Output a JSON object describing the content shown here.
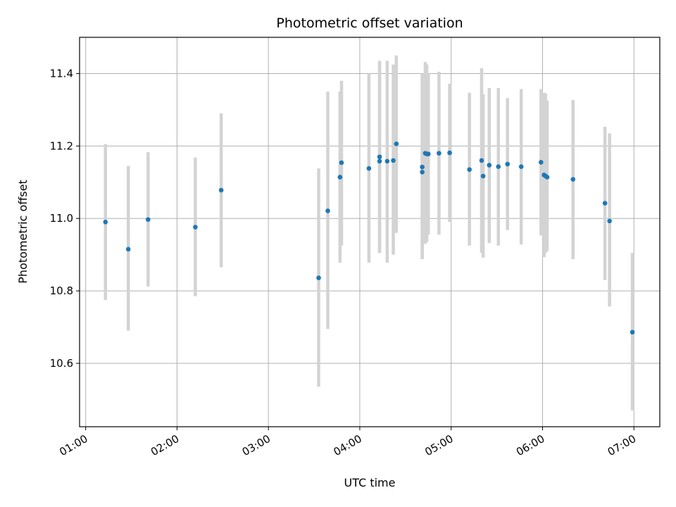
{
  "chart_data": {
    "type": "scatter",
    "title": "Photometric offset variation",
    "xlabel": "UTC time",
    "ylabel": "Photometric offset",
    "x_type": "time",
    "xlim": [
      "00:56",
      "07:17"
    ],
    "ylim": [
      10.425,
      11.5
    ],
    "grid": true,
    "x_ticks": [
      "01:00",
      "02:00",
      "03:00",
      "04:00",
      "05:00",
      "06:00",
      "07:00"
    ],
    "y_ticks": [
      10.6,
      10.8,
      11.0,
      11.2,
      11.4
    ],
    "y_tick_labels": [
      "10.6",
      "10.8",
      "11.0",
      "11.2",
      "11.4"
    ],
    "series": [
      {
        "points": [
          {
            "x": "01:13",
            "y": 10.99,
            "ylow": 10.775,
            "yhigh": 11.205
          },
          {
            "x": "01:28",
            "y": 10.915,
            "ylow": 10.69,
            "yhigh": 11.145
          },
          {
            "x": "01:41",
            "y": 10.997,
            "ylow": 10.812,
            "yhigh": 11.183
          },
          {
            "x": "02:12",
            "y": 10.976,
            "ylow": 10.785,
            "yhigh": 11.168
          },
          {
            "x": "02:29",
            "y": 11.078,
            "ylow": 10.865,
            "yhigh": 11.29
          },
          {
            "x": "03:33",
            "y": 10.836,
            "ylow": 10.535,
            "yhigh": 11.138
          },
          {
            "x": "03:39",
            "y": 11.021,
            "ylow": 10.695,
            "yhigh": 11.35
          },
          {
            "x": "03:47",
            "y": 11.114,
            "ylow": 10.878,
            "yhigh": 11.35
          },
          {
            "x": "03:48",
            "y": 11.154,
            "ylow": 10.925,
            "yhigh": 11.38
          },
          {
            "x": "04:06",
            "y": 11.138,
            "ylow": 10.878,
            "yhigh": 11.4
          },
          {
            "x": "04:13",
            "y": 11.17,
            "ylow": 10.905,
            "yhigh": 11.435
          },
          {
            "x": "04:13",
            "y": 11.158,
            "ylow": 10.905,
            "yhigh": 11.43
          },
          {
            "x": "04:18",
            "y": 11.158,
            "ylow": 10.878,
            "yhigh": 11.435
          },
          {
            "x": "04:22",
            "y": 11.16,
            "ylow": 10.9,
            "yhigh": 11.425
          },
          {
            "x": "04:24",
            "y": 11.206,
            "ylow": 10.96,
            "yhigh": 11.45
          },
          {
            "x": "04:41",
            "y": 11.142,
            "ylow": 10.888,
            "yhigh": 11.4
          },
          {
            "x": "04:41",
            "y": 11.128,
            "ylow": 10.888,
            "yhigh": 11.37
          },
          {
            "x": "04:43",
            "y": 11.18,
            "ylow": 10.93,
            "yhigh": 11.432
          },
          {
            "x": "04:44",
            "y": 11.178,
            "ylow": 10.935,
            "yhigh": 11.425
          },
          {
            "x": "04:45",
            "y": 11.178,
            "ylow": 10.955,
            "yhigh": 11.4
          },
          {
            "x": "04:52",
            "y": 11.18,
            "ylow": 10.955,
            "yhigh": 11.405
          },
          {
            "x": "04:59",
            "y": 11.181,
            "ylow": 10.99,
            "yhigh": 11.372
          },
          {
            "x": "05:12",
            "y": 11.135,
            "ylow": 10.925,
            "yhigh": 11.347
          },
          {
            "x": "05:20",
            "y": 11.16,
            "ylow": 10.905,
            "yhigh": 11.415
          },
          {
            "x": "05:21",
            "y": 11.117,
            "ylow": 10.892,
            "yhigh": 11.343
          },
          {
            "x": "05:25",
            "y": 11.147,
            "ylow": 10.932,
            "yhigh": 11.36
          },
          {
            "x": "05:31",
            "y": 11.143,
            "ylow": 10.925,
            "yhigh": 11.36
          },
          {
            "x": "05:37",
            "y": 11.15,
            "ylow": 10.968,
            "yhigh": 11.332
          },
          {
            "x": "05:46",
            "y": 11.143,
            "ylow": 10.928,
            "yhigh": 11.357
          },
          {
            "x": "05:59",
            "y": 11.155,
            "ylow": 10.953,
            "yhigh": 11.357
          },
          {
            "x": "06:01",
            "y": 11.12,
            "ylow": 10.893,
            "yhigh": 11.347
          },
          {
            "x": "06:02",
            "y": 11.117,
            "ylow": 10.905,
            "yhigh": 11.345
          },
          {
            "x": "06:03",
            "y": 11.114,
            "ylow": 10.91,
            "yhigh": 11.325
          },
          {
            "x": "06:20",
            "y": 11.108,
            "ylow": 10.888,
            "yhigh": 11.327
          },
          {
            "x": "06:41",
            "y": 11.042,
            "ylow": 10.83,
            "yhigh": 11.253
          },
          {
            "x": "06:44",
            "y": 10.993,
            "ylow": 10.757,
            "yhigh": 11.235
          },
          {
            "x": "06:59",
            "y": 10.686,
            "ylow": 10.47,
            "yhigh": 10.905
          }
        ]
      }
    ],
    "colors": {
      "point": "#1f77b4",
      "errorbar": "#d3d3d3",
      "grid": "#b0b0b0"
    }
  }
}
